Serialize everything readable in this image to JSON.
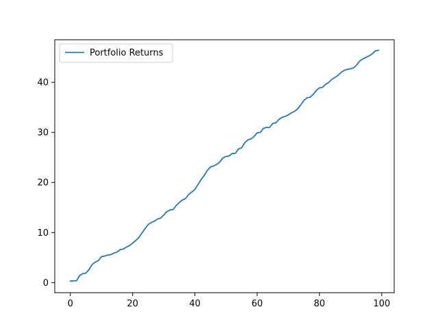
{
  "chart_data": {
    "type": "line",
    "title": "",
    "xlabel": "",
    "ylabel": "",
    "xlim": [
      -5,
      104
    ],
    "ylim": [
      -2.0,
      48.5
    ],
    "xticks": [
      0,
      20,
      40,
      60,
      80,
      100
    ],
    "yticks": [
      0,
      10,
      20,
      30,
      40
    ],
    "grid": false,
    "legend": {
      "position": "upper-left"
    },
    "series": [
      {
        "name": "Portfolio Returns",
        "color": "#1f77b4",
        "x": [
          0,
          1,
          2,
          3,
          4,
          5,
          6,
          7,
          8,
          9,
          10,
          11,
          12,
          13,
          14,
          15,
          16,
          17,
          18,
          19,
          20,
          21,
          22,
          23,
          24,
          25,
          26,
          27,
          28,
          29,
          30,
          31,
          32,
          33,
          34,
          35,
          36,
          37,
          38,
          39,
          40,
          41,
          42,
          43,
          44,
          45,
          46,
          47,
          48,
          49,
          50,
          51,
          52,
          53,
          54,
          55,
          56,
          57,
          58,
          59,
          60,
          61,
          62,
          63,
          64,
          65,
          66,
          67,
          68,
          69,
          70,
          71,
          72,
          73,
          74,
          75,
          76,
          77,
          78,
          79,
          80,
          81,
          82,
          83,
          84,
          85,
          86,
          87,
          88,
          89,
          90,
          91,
          92,
          93,
          94,
          95,
          96,
          97,
          98,
          99
        ],
        "values": [
          0.3,
          0.35,
          0.4,
          1.4,
          1.8,
          1.9,
          2.6,
          3.6,
          4.1,
          4.4,
          5.2,
          5.3,
          5.5,
          5.6,
          5.9,
          6.1,
          6.6,
          6.7,
          7.1,
          7.4,
          7.9,
          8.4,
          9.0,
          9.9,
          10.8,
          11.6,
          12.0,
          12.3,
          12.7,
          12.9,
          13.5,
          14.2,
          14.5,
          14.6,
          15.4,
          16.0,
          16.5,
          16.8,
          17.6,
          18.1,
          18.6,
          19.6,
          20.6,
          21.4,
          22.4,
          23.1,
          23.3,
          23.6,
          24.1,
          24.9,
          25.2,
          25.3,
          25.8,
          25.8,
          26.7,
          26.9,
          27.9,
          28.5,
          28.7,
          29.2,
          29.9,
          30.0,
          30.8,
          31.0,
          31.0,
          31.8,
          31.9,
          32.6,
          33.0,
          33.2,
          33.5,
          33.9,
          34.2,
          34.7,
          35.5,
          36.4,
          36.9,
          37.0,
          37.6,
          38.4,
          38.9,
          39.0,
          39.6,
          40.0,
          40.6,
          41.0,
          41.4,
          42.0,
          42.4,
          42.6,
          42.7,
          42.9,
          43.5,
          44.3,
          44.7,
          45.0,
          45.3,
          45.7,
          46.3,
          46.4
        ]
      }
    ]
  }
}
